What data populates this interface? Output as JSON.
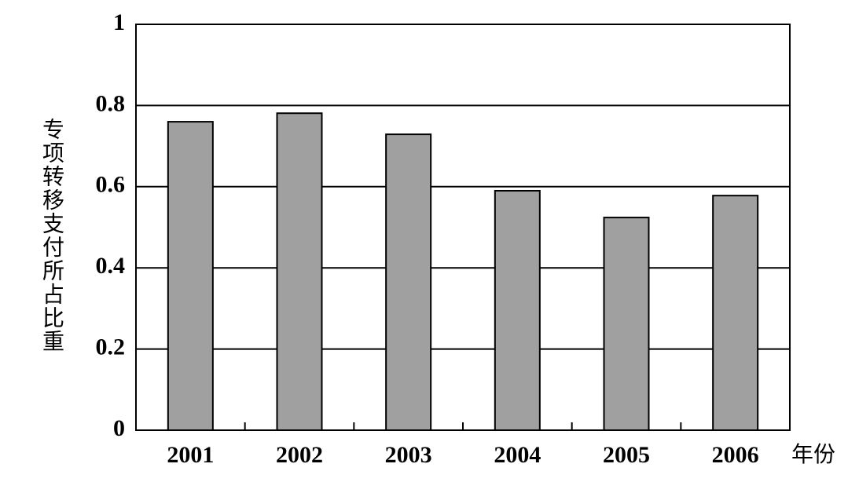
{
  "chart_data": {
    "type": "bar",
    "x_label": "年份",
    "y_label": "专项转移支付所占比重",
    "categories": [
      "2001",
      "2002",
      "2003",
      "2004",
      "2005",
      "2006"
    ],
    "values": [
      0.76,
      0.781,
      0.729,
      0.59,
      0.524,
      0.578
    ],
    "color": "#a0a0a0",
    "ylim": [
      0,
      1
    ],
    "yticks": [
      0,
      0.2,
      0.4,
      0.6,
      0.8,
      1
    ],
    "grid": true
  }
}
